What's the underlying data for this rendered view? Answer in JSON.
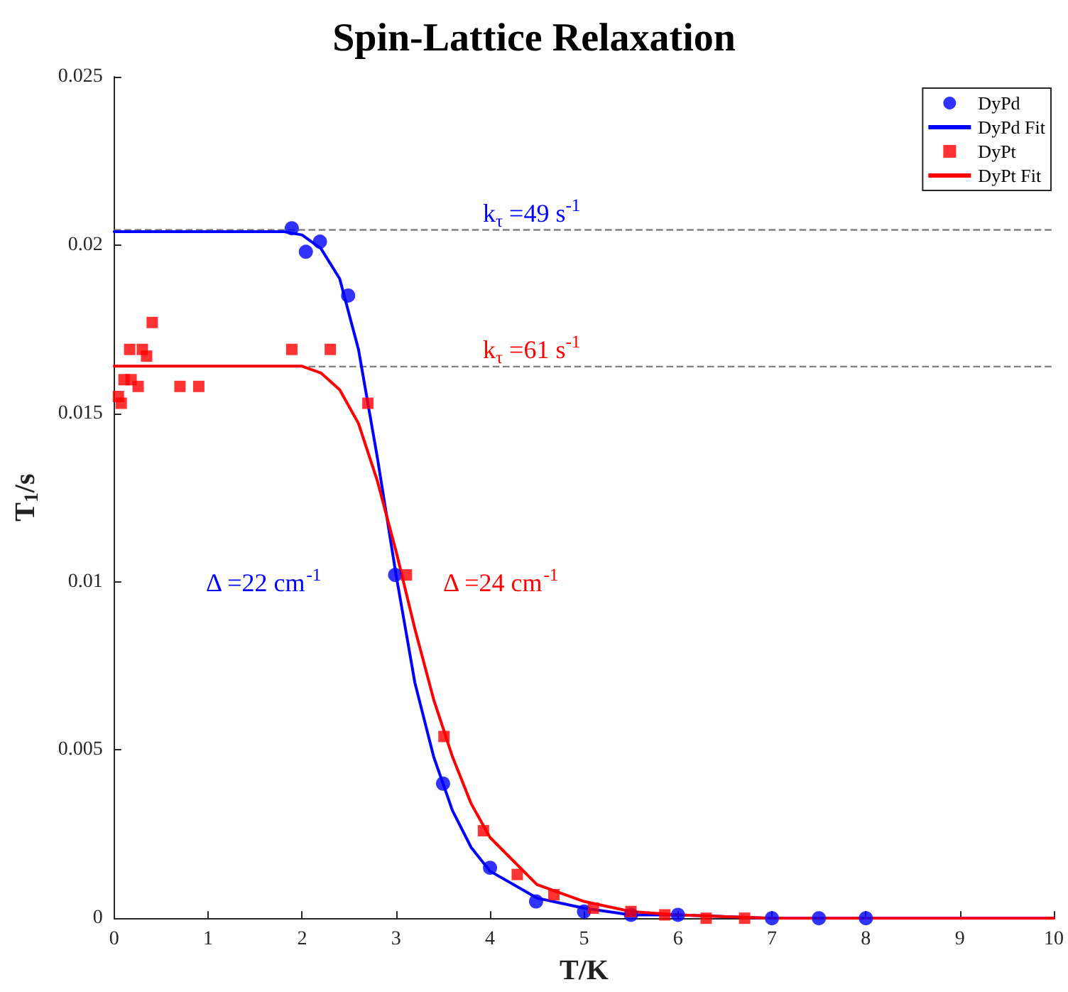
{
  "chart_data": {
    "type": "scatter",
    "title": "Spin-Lattice Relaxation",
    "xlabel": "T/K",
    "ylabel": "T$_{1}$/s",
    "xlim": [
      0,
      10
    ],
    "xticks": [
      0,
      1,
      2,
      3,
      4,
      5,
      6,
      7,
      8,
      9,
      10
    ],
    "ylim": [
      0,
      0.025
    ],
    "yticks": [
      0,
      0.005,
      0.01,
      0.015,
      0.02,
      0.025
    ],
    "grid": false,
    "legend": "top right",
    "series": [
      {
        "name": "DyPd",
        "type": "scatter",
        "marker": "circle",
        "color": "#0000ff",
        "x": [
          1.89,
          2.04,
          2.19,
          2.49,
          2.99,
          3.5,
          4.0,
          4.49,
          5.0,
          5.5,
          6.0,
          7.0,
          7.5,
          8.0
        ],
        "values": [
          0.0205,
          0.0198,
          0.0201,
          0.0185,
          0.0102,
          0.004,
          0.0015,
          0.0005,
          0.0002,
          0.0001,
          0.0001,
          0.0,
          0.0,
          0.0
        ]
      },
      {
        "name": "DyPd Fit",
        "type": "line",
        "marker": "none",
        "line_style": "solid",
        "color": "#0000ff",
        "x": [
          0,
          1,
          1.8,
          2.0,
          2.2,
          2.4,
          2.6,
          2.8,
          3.0,
          3.2,
          3.4,
          3.6,
          3.8,
          4.0,
          4.5,
          5.0,
          5.5,
          6.0,
          7.0,
          8.0,
          10.0
        ],
        "values": [
          0.0204,
          0.0204,
          0.0204,
          0.0203,
          0.0199,
          0.019,
          0.0169,
          0.0137,
          0.0102,
          0.007,
          0.0048,
          0.0032,
          0.0021,
          0.0014,
          0.0006,
          0.0003,
          0.0001,
          0.0001,
          0.0,
          0.0,
          0.0
        ]
      },
      {
        "name": "DyPt",
        "type": "scatter",
        "marker": "square",
        "color": "#ff0000",
        "x": [
          0.045,
          0.075,
          0.105,
          0.165,
          0.18,
          0.255,
          0.3,
          0.345,
          0.405,
          0.7,
          0.9,
          1.89,
          2.3,
          2.7,
          3.11,
          3.51,
          3.93,
          4.29,
          4.68,
          5.1,
          5.5,
          5.86,
          6.3,
          6.71
        ],
        "values": [
          0.0155,
          0.0153,
          0.016,
          0.0169,
          0.016,
          0.0158,
          0.0169,
          0.0167,
          0.0177,
          0.0158,
          0.0158,
          0.0169,
          0.0169,
          0.0153,
          0.0102,
          0.0054,
          0.0026,
          0.0013,
          0.0007,
          0.0003,
          0.0002,
          0.0001,
          0.0,
          0.0
        ]
      },
      {
        "name": "DyPt Fit",
        "type": "line",
        "marker": "none",
        "line_style": "solid",
        "color": "#ff0000",
        "x": [
          0,
          1,
          2.0,
          2.2,
          2.4,
          2.6,
          2.8,
          3.0,
          3.2,
          3.4,
          3.6,
          3.8,
          4.0,
          4.5,
          5.0,
          5.5,
          6.0,
          7.0,
          8.0,
          10.0
        ],
        "values": [
          0.0164,
          0.0164,
          0.0164,
          0.0162,
          0.0157,
          0.0147,
          0.013,
          0.0109,
          0.0086,
          0.0065,
          0.0048,
          0.0034,
          0.0024,
          0.001,
          0.0005,
          0.0002,
          0.0001,
          0.0,
          0.0,
          0.0
        ]
      }
    ],
    "ref_lines": [
      {
        "axis": "y",
        "value": 0.02045,
        "color": "#808080",
        "line_style": "dashed"
      },
      {
        "axis": "y",
        "value": 0.01639,
        "color": "#808080",
        "line_style": "dashed"
      }
    ],
    "annotations": [
      "k$_{τ}$ =49 s$^{-1}$",
      "k$_{τ}$ =61 s$^{-1}$",
      "Δ =22 cm$^{-1}$",
      "Δ =24 cm$^{-1}$"
    ]
  }
}
